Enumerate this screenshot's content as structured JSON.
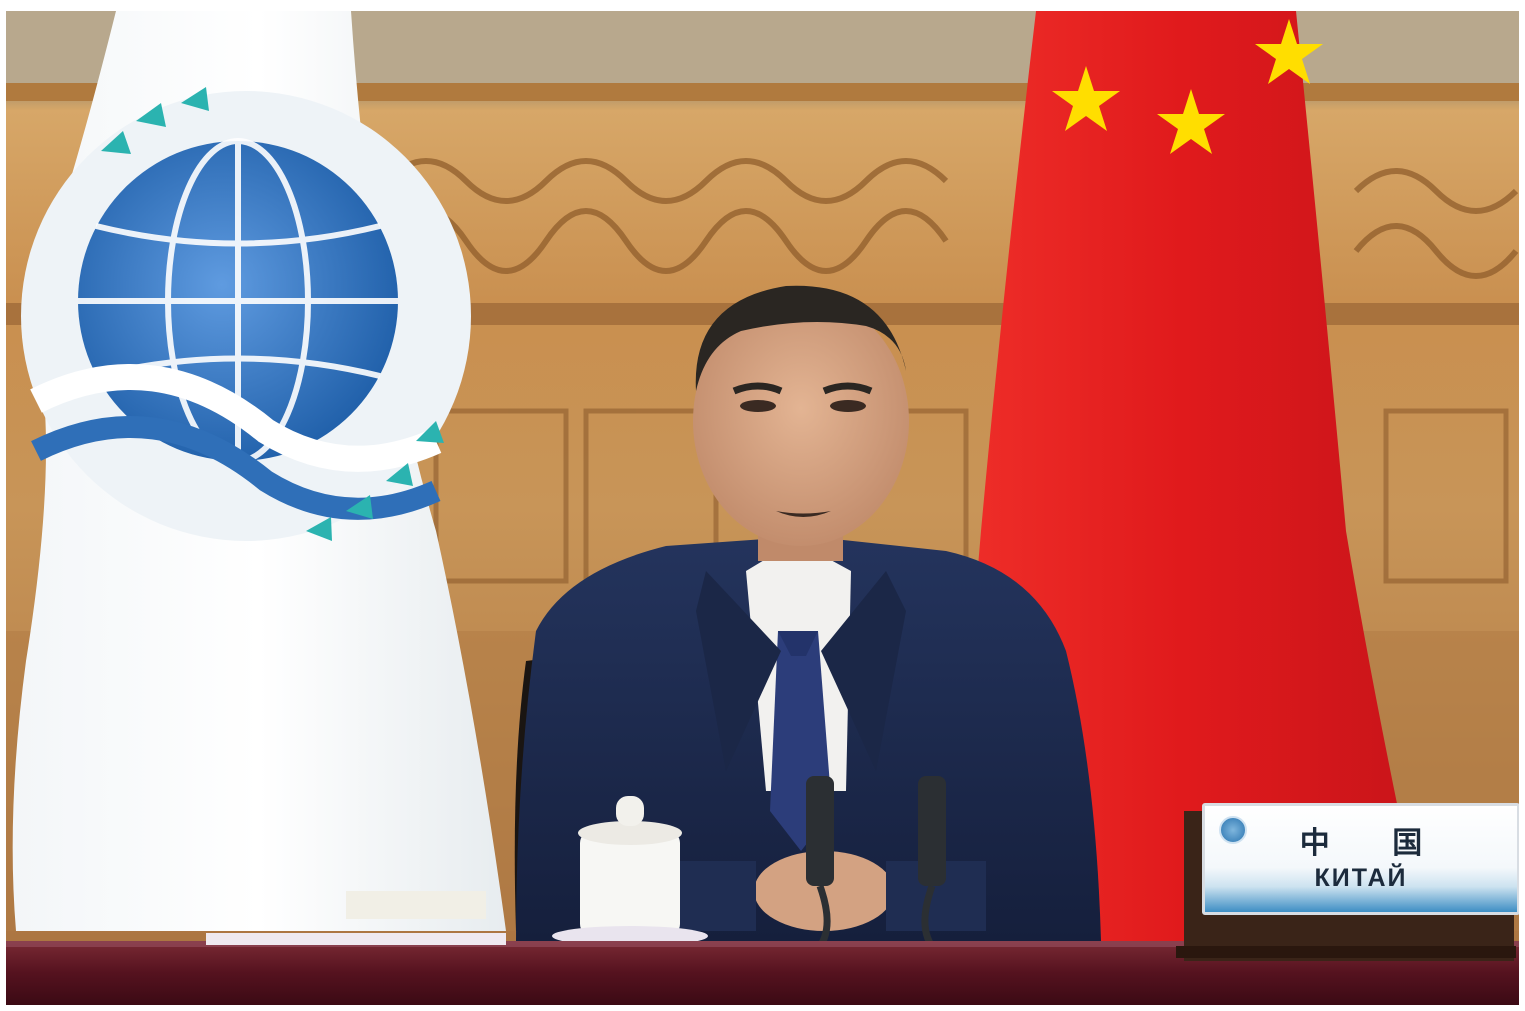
{
  "photo": {
    "subject": "speaker-at-desk",
    "flags": [
      "sco-flag",
      "china-flag"
    ]
  },
  "name_plaque": {
    "line_cn": "中 国",
    "line_ru": "КИТАЙ"
  },
  "colors": {
    "flag_red": "#e21b1f",
    "flag_star": "#ffde00",
    "sco_blue": "#2f6fb8",
    "sco_teal": "#2bb3b0",
    "suit_navy": "#1e2d52",
    "wood": "#b98a54",
    "desk_burgundy": "#5a1320"
  }
}
